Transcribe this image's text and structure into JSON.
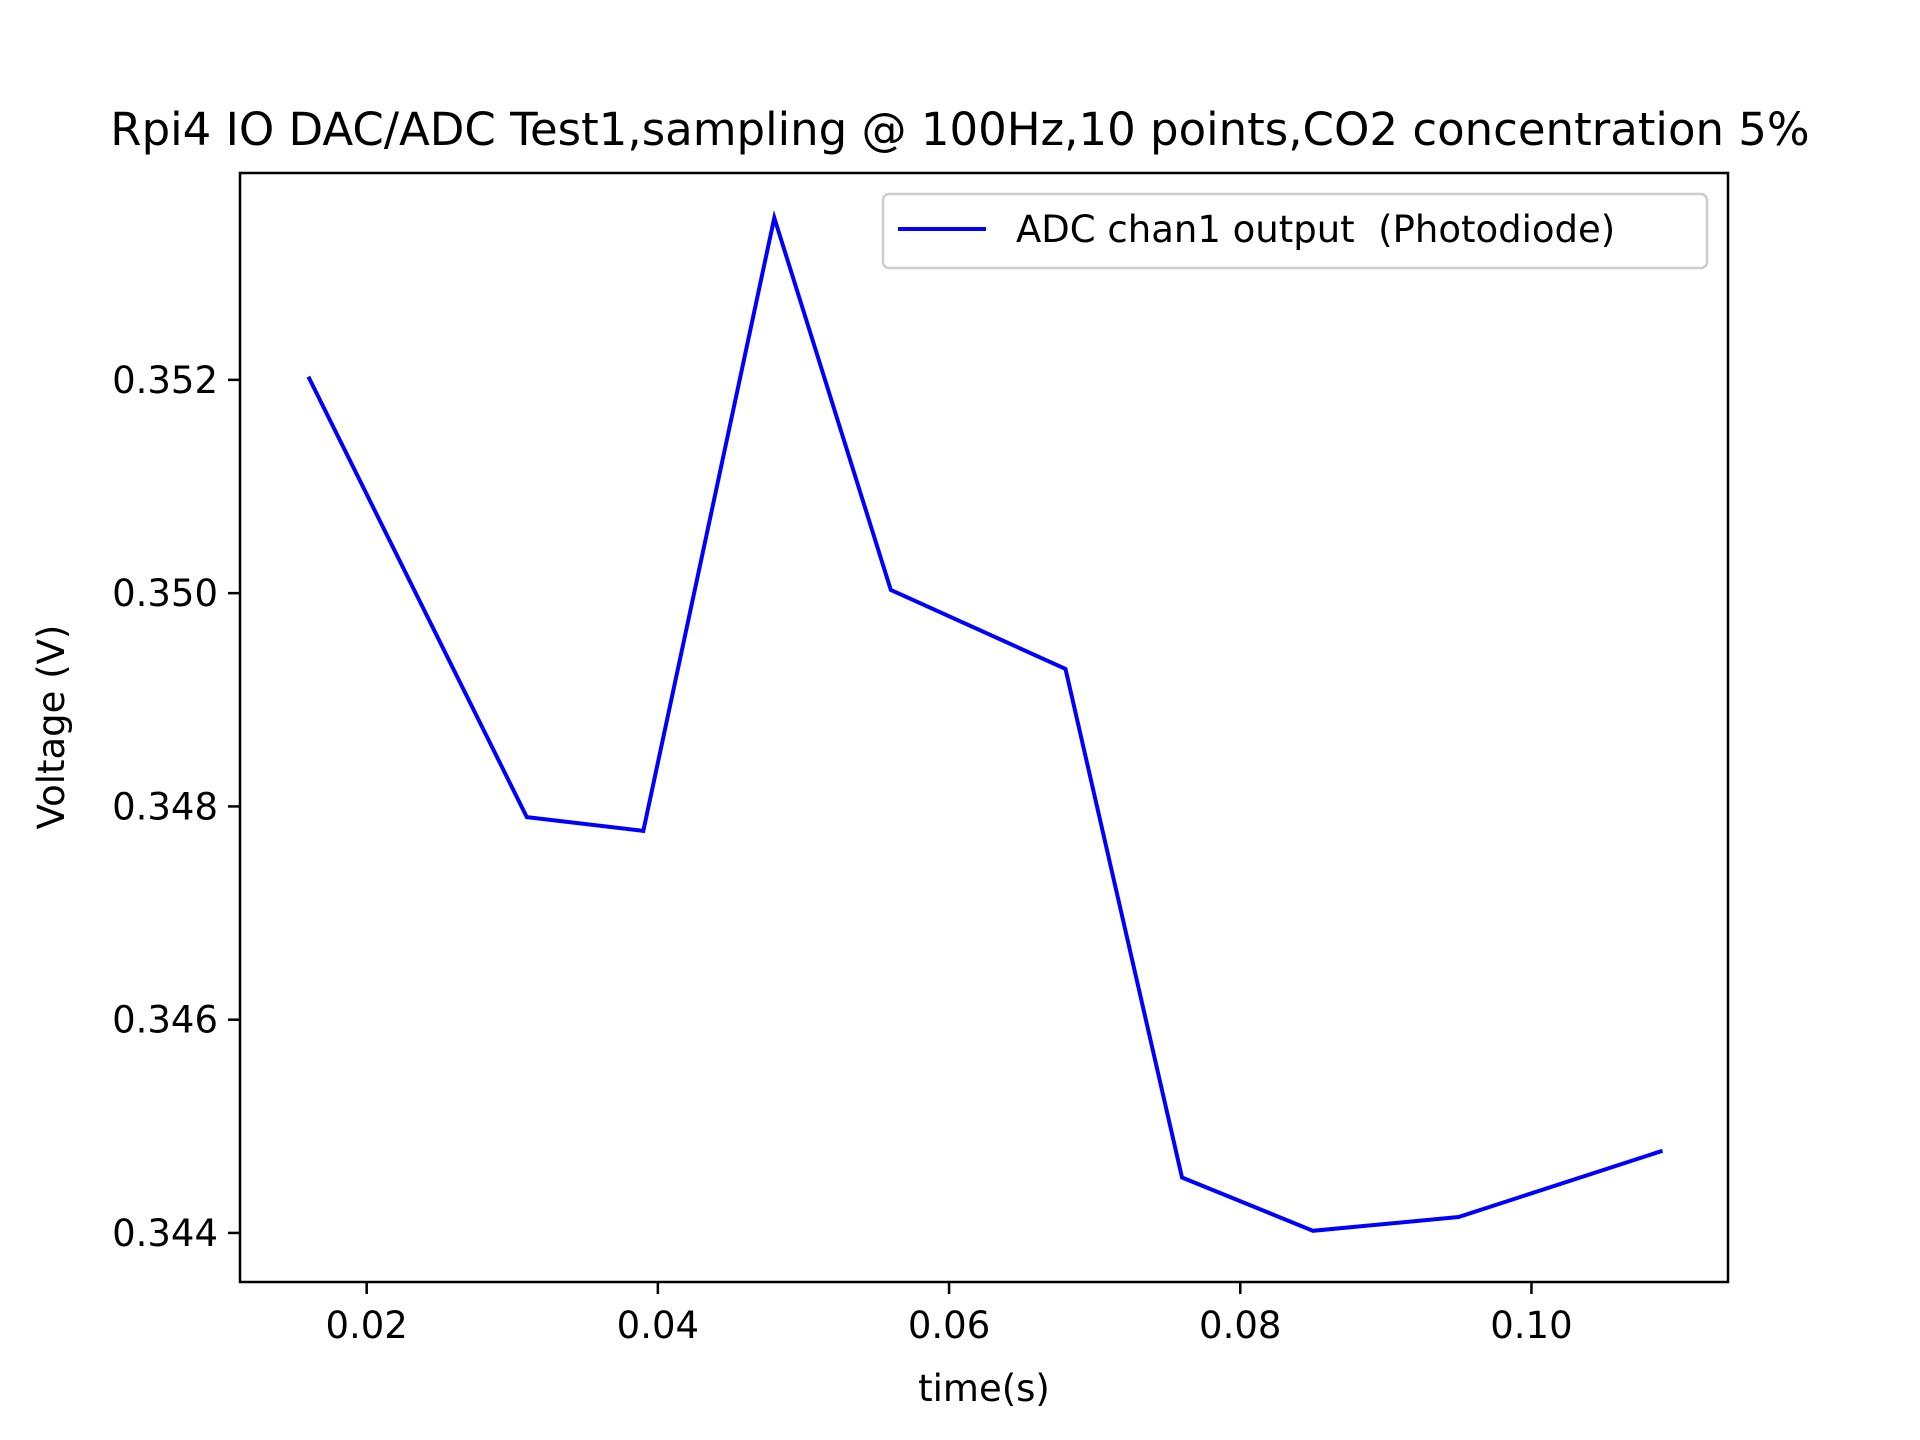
{
  "chart_data": {
    "type": "line",
    "title": "Rpi4 IO DAC/ADC Test1,sampling @ 100Hz,10 points,CO2 concentration 5%",
    "xlabel": "time(s)",
    "ylabel": "Voltage (V)",
    "xlim": [
      0.0113,
      0.1135
    ],
    "ylim": [
      0.34354,
      0.35394
    ],
    "xticks": [
      0.02,
      0.04,
      0.06,
      0.08,
      0.1
    ],
    "xtick_labels": [
      "0.02",
      "0.04",
      "0.06",
      "0.08",
      "0.10"
    ],
    "yticks": [
      0.344,
      0.346,
      0.348,
      0.35,
      0.352
    ],
    "ytick_labels": [
      "0.344",
      "0.346",
      "0.348",
      "0.350",
      "0.352"
    ],
    "grid": false,
    "legend_position": "top-right",
    "series": [
      {
        "name": "ADC chan1 output  (Photodiode)",
        "color": "#0000ff",
        "x": [
          0.016,
          0.031,
          0.039,
          0.048,
          0.056,
          0.068,
          0.076,
          0.085,
          0.095,
          0.109
        ],
        "y": [
          0.35203,
          0.3479,
          0.34777,
          0.35352,
          0.35003,
          0.34929,
          0.34452,
          0.34402,
          0.34415,
          0.34477
        ]
      }
    ]
  }
}
